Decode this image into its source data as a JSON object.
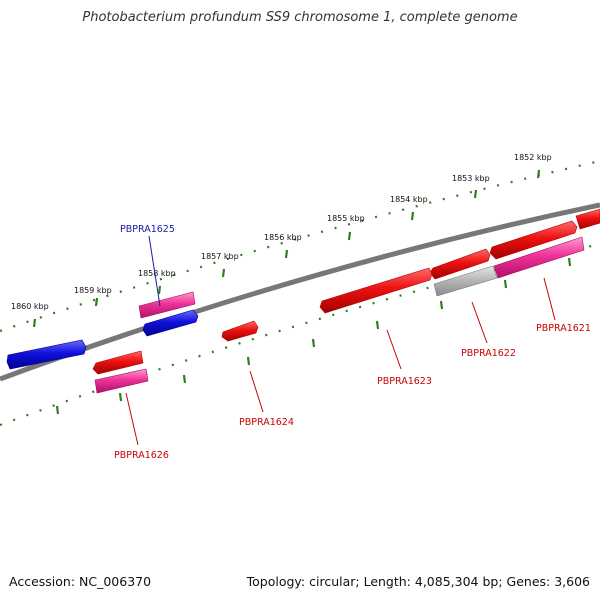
{
  "title": "Photobacterium profundum SS9 chromosome 1, complete genome",
  "footer": {
    "accession": "Accession: NC_006370",
    "summary": "Topology: circular; Length: 4,085,304 bp; Genes: 3,606"
  },
  "scale_labels": [
    "1852 kbp",
    "1853 kbp",
    "1854 kbp",
    "1855 kbp",
    "1856 kbp",
    "1857 kbp",
    "1858 kbp",
    "1859 kbp",
    "1860 kbp"
  ],
  "gene_labels": [
    "PBPRA1621",
    "PBPRA1622",
    "PBPRA1623",
    "PBPRA1624",
    "PBPRA1625",
    "PBPRA1626"
  ],
  "colors": {
    "backbone": "#777777",
    "ticks": "#2e7d1e",
    "gene_red": "#ee1111",
    "gene_magenta": "#ee3399",
    "gene_blue": "#1111dd",
    "gene_grey": "#aaaaaa",
    "label_red": "#cc0000",
    "label_blue": "#1a1aa6"
  }
}
